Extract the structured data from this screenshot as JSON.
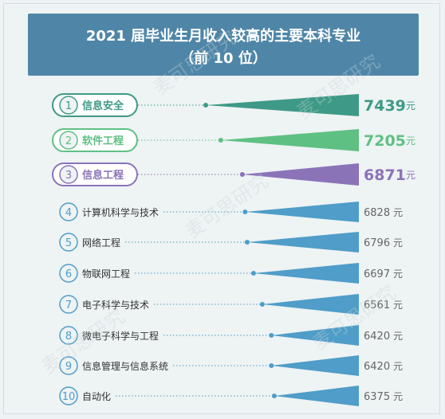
{
  "header": {
    "title_line1": "2021 届毕业生月收入较高的主要本科专业",
    "title_line2": "（前 10 位）"
  },
  "watermark": "麦可思研究",
  "chart_data": {
    "type": "bar",
    "title": "2021 届毕业生月收入较高的主要本科专业（前 10 位）",
    "unit": "元",
    "ranks": [
      "1",
      "2",
      "3",
      "4",
      "5",
      "6",
      "7",
      "8",
      "9",
      "10"
    ],
    "categories": [
      "信息安全",
      "软件工程",
      "信息工程",
      "计算机科学与技术",
      "网络工程",
      "物联网工程",
      "电子科学与技术",
      "微电子科学与工程",
      "信息管理与信息系统",
      "自动化"
    ],
    "values": [
      7439,
      7205,
      6871,
      6828,
      6796,
      6697,
      6561,
      6420,
      6420,
      6375
    ],
    "highlight_colors": [
      "#3e9a86",
      "#5fc083",
      "#8b73b8"
    ],
    "default_color": "#4f9dc8",
    "label_bg_top3": "#ffffff",
    "label_bg_rest": "#eef3f4"
  }
}
